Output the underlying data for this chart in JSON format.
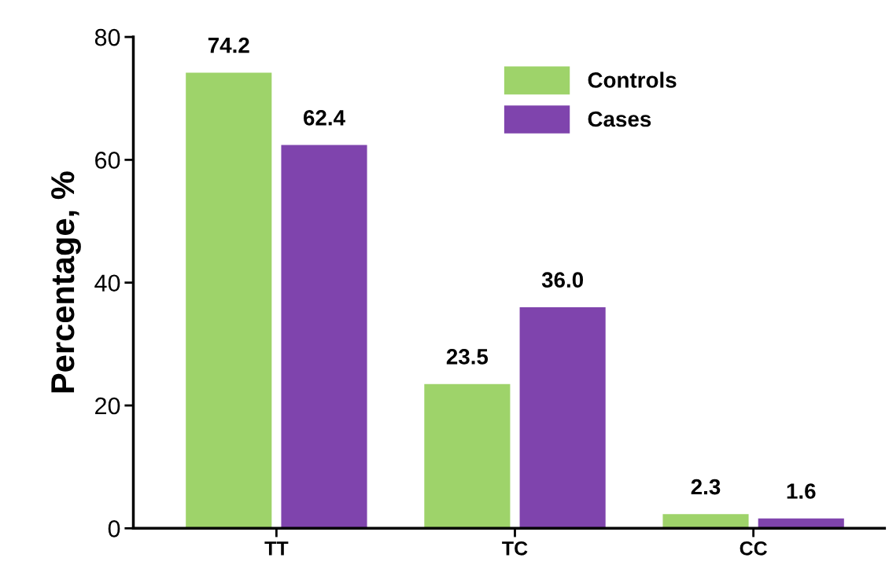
{
  "chart_data": {
    "type": "bar",
    "ylabel": "Percentage, %",
    "categories": [
      "TT",
      "TC",
      "CC"
    ],
    "series": [
      {
        "name": "Controls",
        "color": "#9ed36a",
        "values": [
          74.2,
          23.5,
          2.3
        ],
        "value_labels": [
          "74.2",
          "23.5",
          "2.3"
        ]
      },
      {
        "name": "Cases",
        "color": "#7f44ad",
        "values": [
          62.4,
          36.0,
          1.6
        ],
        "value_labels": [
          "62.4",
          "36.0",
          "1.6"
        ]
      }
    ],
    "ylim": [
      0,
      80
    ],
    "yticks": [
      0,
      20,
      40,
      60,
      80
    ],
    "grid": false,
    "legend": "top right"
  }
}
